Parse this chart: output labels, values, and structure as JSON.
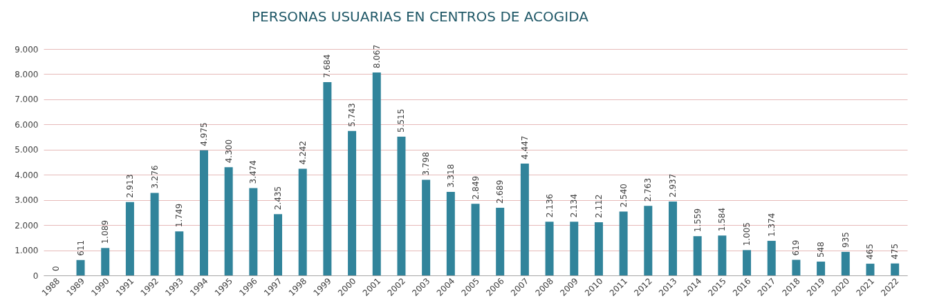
{
  "chart_data": {
    "type": "bar",
    "title": "PERSONAS USUARIAS EN CENTROS DE ACOGIDA",
    "categories": [
      "1988",
      "1989",
      "1990",
      "1991",
      "1992",
      "1993",
      "1994",
      "1995",
      "1996",
      "1997",
      "1998",
      "1999",
      "2000",
      "2001",
      "2002",
      "2003",
      "2004",
      "2005",
      "2006",
      "2007",
      "2008",
      "2009",
      "2010",
      "2011",
      "2012",
      "2013",
      "2014",
      "2015",
      "2016",
      "2017",
      "2018",
      "2019",
      "2020",
      "2021",
      "2022"
    ],
    "values": [
      0,
      611,
      1089,
      2913,
      3276,
      1749,
      4975,
      4300,
      3474,
      2435,
      4242,
      7684,
      5743,
      8067,
      5515,
      3798,
      3318,
      2849,
      2689,
      4447,
      2136,
      2134,
      2112,
      2540,
      2763,
      2937,
      1559,
      1584,
      1005,
      1374,
      619,
      548,
      935,
      465,
      475
    ],
    "value_labels": [
      "0",
      "611",
      "1.089",
      "2.913",
      "3.276",
      "1.749",
      "4.975",
      "4.300",
      "3.474",
      "2.435",
      "4.242",
      "7.684",
      "5.743",
      "8.067",
      "5.515",
      "3.798",
      "3.318",
      "2.849",
      "2.689",
      "4.447",
      "2.136",
      "2.134",
      "2.112",
      "2.540",
      "2.763",
      "2.937",
      "1.559",
      "1.584",
      "1.005",
      "1.374",
      "619",
      "548",
      "935",
      "465",
      "475"
    ],
    "color": "#31849b",
    "ylim": [
      0,
      9000
    ],
    "yticks": [
      {
        "value": 0,
        "label": "0"
      },
      {
        "value": 1000,
        "label": "1.000"
      },
      {
        "value": 2000,
        "label": "2.000"
      },
      {
        "value": 3000,
        "label": "3.000"
      },
      {
        "value": 4000,
        "label": "4.000"
      },
      {
        "value": 5000,
        "label": "5.000"
      },
      {
        "value": 6000,
        "label": "6.000"
      },
      {
        "value": 7000,
        "label": "7.000"
      },
      {
        "value": 8000,
        "label": "8.000"
      },
      {
        "value": 9000,
        "label": "9.000"
      }
    ],
    "grid": "y"
  }
}
